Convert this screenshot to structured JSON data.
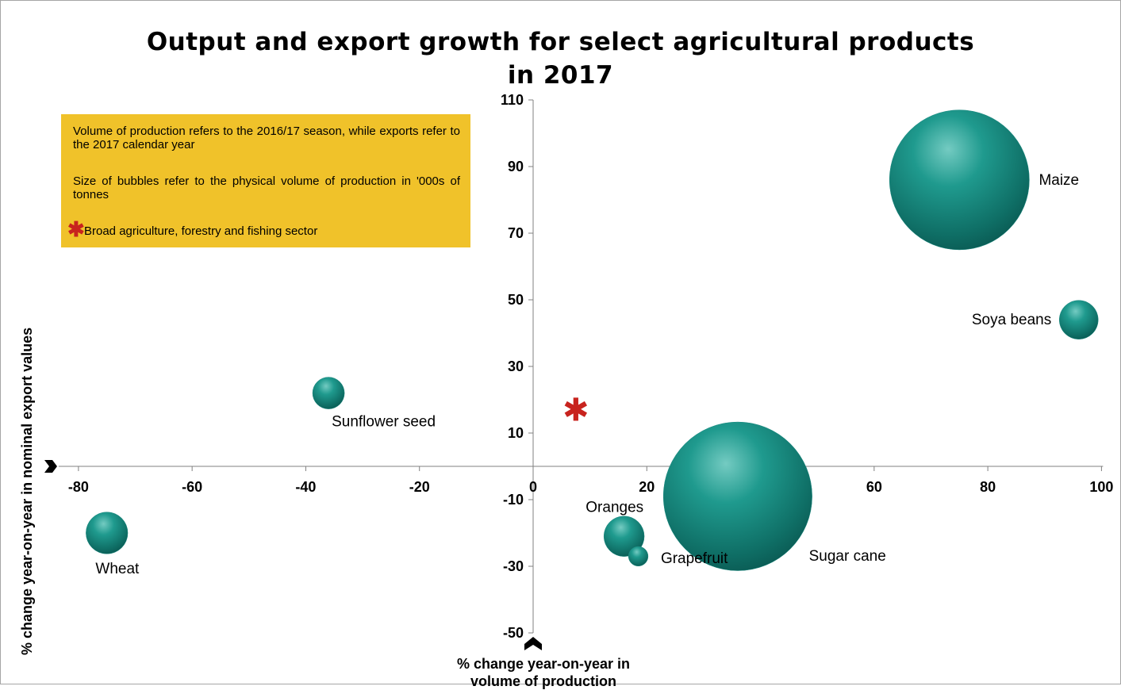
{
  "chart_data": {
    "type": "bubble",
    "title_lines": [
      "Output and export growth for select agricultural products",
      "in 2017"
    ],
    "xlabel_lines": [
      "% change year-on-year in",
      "volume of production"
    ],
    "ylabel": "% change year-on-year in nominal export values",
    "xlim": [
      -80,
      100
    ],
    "ylim": [
      -50,
      110
    ],
    "x_ticks": [
      -80,
      -60,
      -40,
      -20,
      0,
      20,
      40,
      60,
      80,
      100
    ],
    "y_ticks": [
      110,
      90,
      70,
      50,
      30,
      10,
      -10,
      -30,
      -50
    ],
    "bubble_color": "#1e8c82",
    "highlight_color": "#c8231e",
    "note_box_color": "#f0c22a",
    "series": [
      {
        "name": "Maize",
        "x": 75,
        "y": 86,
        "size": 16800
      },
      {
        "name": "Soya beans",
        "x": 96,
        "y": 44,
        "size": 1300
      },
      {
        "name": "Sunflower seed",
        "x": -36,
        "y": 22,
        "size": 870
      },
      {
        "name": "Sugar cane",
        "x": 36,
        "y": -9,
        "size": 19000
      },
      {
        "name": "Oranges",
        "x": 16,
        "y": -21,
        "size": 1400
      },
      {
        "name": "Grapefruit",
        "x": 18.5,
        "y": -27,
        "size": 330
      },
      {
        "name": "Wheat",
        "x": -75,
        "y": -20,
        "size": 1500
      }
    ],
    "highlight_point": {
      "name": "Broad agriculture, forestry and fishing sector",
      "x": 7.5,
      "y": 17
    }
  },
  "notes": {
    "note1": "Volume of production refers to the 2016/17 season, while exports refer to the 2017 calendar year",
    "note2": "Size of bubbles refer to the physical volume of production in '000s of tonnes",
    "note3": "Broad agriculture, forestry and fishing sector",
    "star_symbol": "✱"
  }
}
